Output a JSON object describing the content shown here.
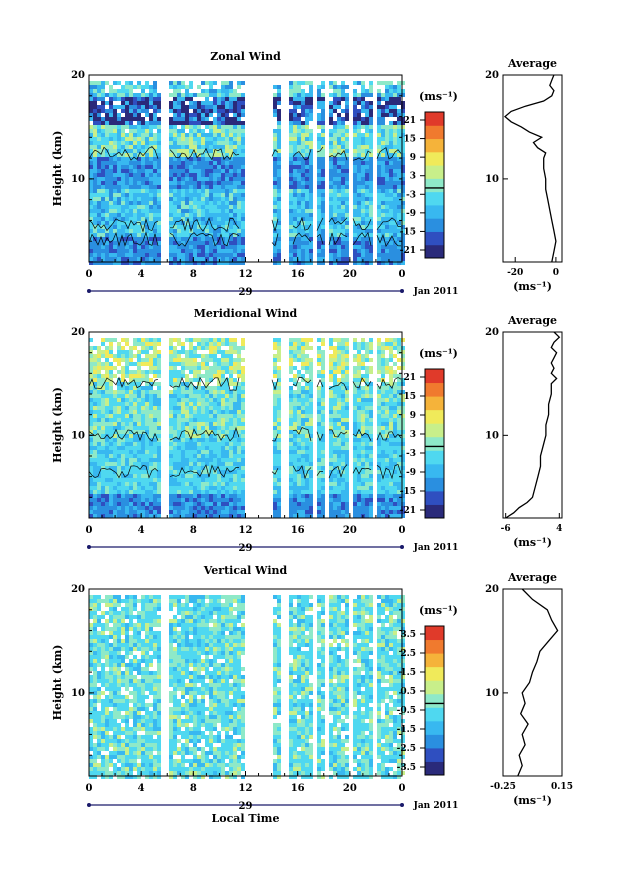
{
  "chart_data": [
    {
      "type": "heatmap",
      "title": "Zonal Wind",
      "ylabel": "Height (km)",
      "xlabel": "",
      "x_ticks": [
        "0",
        "4",
        "8",
        "12",
        "16",
        "20",
        "0"
      ],
      "date_label": "29",
      "month_label": "Jan 2011",
      "y_ticks": [
        "20",
        "10"
      ],
      "ylim": [
        2,
        20
      ],
      "colorbar": {
        "unit": "(ms⁻¹)",
        "ticks": [
          "21",
          "15",
          "9",
          "3",
          "-3",
          "-9",
          "-15",
          "-21"
        ],
        "range": [
          -24,
          24
        ]
      },
      "profile": {
        "title": "Average",
        "xlabel": "(ms⁻¹)",
        "x_ticks": [
          "-20",
          "0"
        ],
        "xlim": [
          -26,
          3
        ],
        "y_ticks": [
          "20",
          "10"
        ],
        "height": [
          2,
          3,
          4,
          5,
          6,
          7,
          8,
          9,
          10,
          11,
          11.5,
          12,
          12.5,
          13,
          13.5,
          14,
          14.5,
          15,
          15.5,
          16,
          16.5,
          17,
          17.5,
          18,
          18.5,
          19,
          19.5,
          20
        ],
        "value": [
          -2,
          -1,
          0,
          -1,
          -2,
          -3,
          -4,
          -5,
          -5,
          -6,
          -6,
          -6,
          -5,
          -9,
          -11,
          -7,
          -13,
          -17,
          -22,
          -25,
          -22,
          -15,
          -6,
          -2,
          -1,
          -3,
          -2,
          -1
        ]
      }
    },
    {
      "type": "heatmap",
      "title": "Meridional Wind",
      "ylabel": "Height (km)",
      "xlabel": "",
      "x_ticks": [
        "0",
        "4",
        "8",
        "12",
        "16",
        "20",
        "0"
      ],
      "date_label": "29",
      "month_label": "Jan 2011",
      "y_ticks": [
        "20",
        "10"
      ],
      "ylim": [
        2,
        20
      ],
      "colorbar": {
        "unit": "(ms⁻¹)",
        "ticks": [
          "21",
          "15",
          "9",
          "3",
          "-3",
          "-9",
          "-15",
          "-21"
        ],
        "range": [
          -24,
          24
        ]
      },
      "profile": {
        "title": "Average",
        "xlabel": "(ms⁻¹)",
        "x_ticks": [
          "-6",
          "4"
        ],
        "xlim": [
          -6.5,
          4.5
        ],
        "y_ticks": [
          "20",
          "10"
        ],
        "height": [
          2,
          2.5,
          3,
          3.5,
          4,
          5,
          6,
          7,
          8,
          9,
          10,
          11,
          12,
          13,
          14,
          15,
          15.5,
          16,
          16.5,
          17,
          17.5,
          18,
          18.5,
          19,
          19.5,
          20
        ],
        "value": [
          -6,
          -4.5,
          -3.5,
          -2,
          -1,
          -0.5,
          0,
          0.5,
          0.5,
          1,
          1.5,
          1.5,
          2,
          2,
          2.5,
          2.5,
          3.5,
          2.5,
          3,
          2.5,
          3,
          3.5,
          2.5,
          3,
          4,
          3
        ]
      }
    },
    {
      "type": "heatmap",
      "title": "Vertical Wind",
      "ylabel": "Height (km)",
      "xlabel": "Local Time",
      "x_ticks": [
        "0",
        "4",
        "8",
        "12",
        "16",
        "20",
        "0"
      ],
      "date_label": "29",
      "month_label": "Jan 2011",
      "y_ticks": [
        "20",
        "10"
      ],
      "ylim": [
        2,
        20
      ],
      "colorbar": {
        "unit": "(ms⁻¹)",
        "ticks": [
          "3.5",
          "2.5",
          "1.5",
          "0.5",
          "-0.5",
          "-1.5",
          "-2.5",
          "-3.5"
        ],
        "range": [
          -4,
          4
        ]
      },
      "profile": {
        "title": "Average",
        "xlabel": "(ms⁻¹)",
        "x_ticks": [
          "-0.25",
          "0.15"
        ],
        "xlim": [
          -0.25,
          0.15
        ],
        "y_ticks": [
          "20",
          "10"
        ],
        "height": [
          2,
          3,
          4,
          5,
          6,
          7,
          8,
          9,
          10,
          11,
          12,
          13,
          14,
          15,
          16,
          17,
          18,
          19,
          20
        ],
        "value": [
          -0.15,
          -0.12,
          -0.14,
          -0.1,
          -0.12,
          -0.08,
          -0.13,
          -0.1,
          -0.12,
          -0.07,
          -0.05,
          -0.02,
          0.0,
          0.06,
          0.12,
          0.08,
          0.05,
          -0.05,
          -0.12
        ]
      }
    }
  ],
  "colors": {
    "scale": [
      "#2a2a7a",
      "#2f4fc0",
      "#2a8fe0",
      "#38b8f0",
      "#4fd8f0",
      "#8ee9c8",
      "#c8ef8a",
      "#f0ea5a",
      "#f5b33a",
      "#f07a2e",
      "#e03a2a"
    ],
    "missing": "#ffffff",
    "contour": "#000000"
  }
}
